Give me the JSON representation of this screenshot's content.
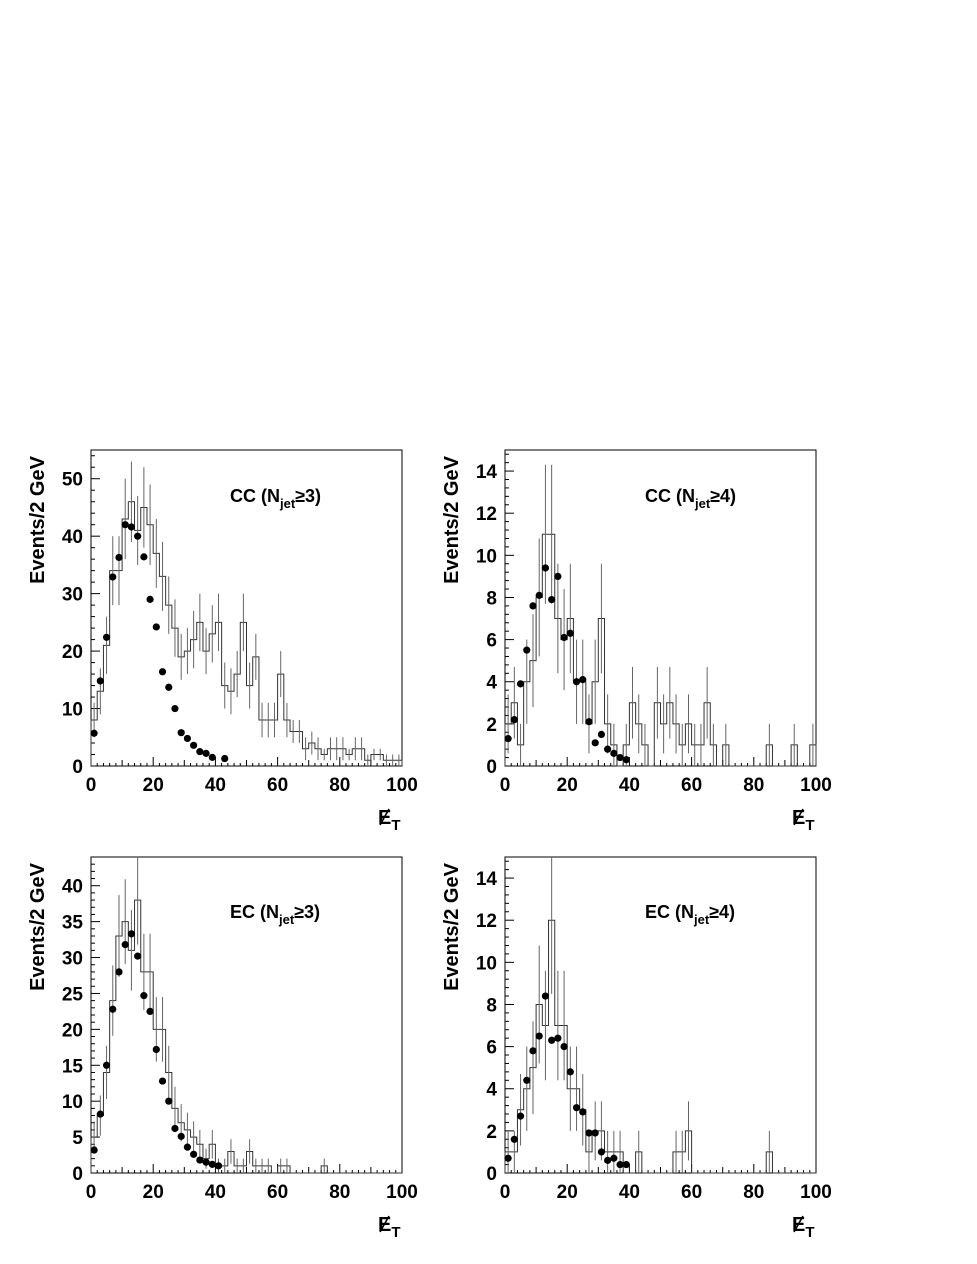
{
  "chart_data": [
    {
      "type": "histogram",
      "panel_label": {
        "main": "CC (N",
        "sub": "jet",
        "tail": "≥3)"
      },
      "ylabel": "Events/2 GeV",
      "xlabel": {
        "main": "E",
        "sub": "T"
      },
      "xlim": [
        0,
        100
      ],
      "ylim": [
        0,
        55
      ],
      "xticks": [
        "0",
        "20",
        "40",
        "60",
        "80",
        "100"
      ],
      "yticks": [
        "0",
        "10",
        "20",
        "30",
        "40",
        "50"
      ],
      "xticks_values": [
        0,
        20,
        40,
        60,
        80,
        100
      ],
      "yticks_values": [
        0,
        10,
        20,
        30,
        40,
        50
      ],
      "bin_width": 2,
      "histogram": {
        "bin_edges_start": 0,
        "values": [
          8,
          13,
          21,
          34,
          34,
          43,
          46,
          41,
          45,
          42,
          37,
          33,
          28,
          24,
          19,
          20,
          22,
          25,
          20,
          23,
          25,
          14,
          13,
          16,
          25,
          14,
          19,
          8,
          8,
          8,
          16,
          8,
          6,
          6,
          3,
          4,
          3,
          2,
          3,
          3,
          3,
          2,
          3,
          3,
          1,
          2,
          2,
          1,
          1,
          1
        ],
        "errors": [
          3,
          4,
          5,
          6,
          6,
          7,
          7,
          6,
          7,
          7,
          6,
          6,
          5,
          5,
          4,
          4,
          5,
          5,
          4,
          5,
          5,
          4,
          4,
          4,
          5,
          4,
          4,
          3,
          3,
          3,
          4,
          3,
          2,
          2,
          2,
          2,
          2,
          1,
          2,
          2,
          2,
          1,
          2,
          2,
          1,
          1,
          1,
          1,
          1,
          1
        ]
      },
      "points": {
        "x": [
          1,
          3,
          5,
          7,
          9,
          11,
          13,
          15,
          17,
          19,
          21,
          23,
          25,
          27,
          29,
          31,
          33,
          35,
          37,
          39,
          43
        ],
        "y": [
          5.7,
          14.8,
          22.4,
          32.9,
          36.3,
          42,
          41.6,
          40,
          36.4,
          29,
          24.2,
          16.4,
          13.7,
          10,
          5.8,
          4.8,
          3.6,
          2.5,
          2.2,
          1.5,
          1.3
        ]
      }
    },
    {
      "type": "histogram",
      "panel_label": {
        "main": "CC (N",
        "sub": "jet",
        "tail": "≥4)"
      },
      "ylabel": "Events/2 GeV",
      "xlabel": {
        "main": "E",
        "sub": "T"
      },
      "xlim": [
        0,
        100
      ],
      "ylim": [
        0,
        15
      ],
      "xticks": [
        "0",
        "20",
        "40",
        "60",
        "80",
        "100"
      ],
      "yticks": [
        "0",
        "2",
        "4",
        "6",
        "8",
        "10",
        "12",
        "14"
      ],
      "xticks_values": [
        0,
        20,
        40,
        60,
        80,
        100
      ],
      "yticks_values": [
        0,
        2,
        4,
        6,
        8,
        10,
        12,
        14
      ],
      "bin_width": 2,
      "histogram": {
        "bin_edges_start": 0,
        "values": [
          2,
          3,
          1,
          4,
          5,
          8,
          11,
          11,
          7,
          6,
          7,
          4,
          4,
          2,
          4,
          7,
          2,
          1,
          0,
          1,
          3,
          2,
          1,
          0,
          3,
          2,
          3,
          2,
          1,
          2,
          1,
          1,
          3,
          1,
          0,
          1,
          0,
          0,
          0,
          0,
          0,
          0,
          1,
          0,
          0,
          0,
          1,
          0,
          0,
          1
        ],
        "errors": [
          1.4,
          1.7,
          1,
          2,
          2.2,
          2.8,
          3.3,
          3.3,
          2.6,
          2.4,
          2.6,
          2,
          2,
          1.4,
          2,
          2.6,
          1.4,
          1,
          0,
          1,
          1.7,
          1.4,
          1,
          0,
          1.7,
          1.4,
          1.7,
          1.4,
          1,
          1.4,
          1,
          1,
          1.7,
          1,
          0,
          1,
          0,
          0,
          0,
          0,
          0,
          0,
          1,
          0,
          0,
          0,
          1,
          0,
          0,
          1
        ]
      },
      "points": {
        "x": [
          1,
          3,
          5,
          7,
          9,
          11,
          13,
          15,
          17,
          19,
          21,
          23,
          25,
          27,
          29,
          31,
          33,
          35,
          37,
          39
        ],
        "y": [
          1.3,
          2.2,
          3.9,
          5.5,
          7.6,
          8.1,
          9.4,
          7.9,
          9.0,
          6.1,
          6.3,
          4.0,
          4.1,
          2.1,
          1.1,
          1.5,
          0.8,
          0.6,
          0.4,
          0.3
        ]
      }
    },
    {
      "type": "histogram",
      "panel_label": {
        "main": "EC (N",
        "sub": "jet",
        "tail": "≥3)"
      },
      "ylabel": "Events/2 GeV",
      "xlabel": {
        "main": "E",
        "sub": "T"
      },
      "xlim": [
        0,
        100
      ],
      "ylim": [
        0,
        44
      ],
      "xticks": [
        "0",
        "20",
        "40",
        "60",
        "80",
        "100"
      ],
      "yticks": [
        "0",
        "5",
        "10",
        "15",
        "20",
        "25",
        "30",
        "35",
        "40"
      ],
      "xticks_values": [
        0,
        20,
        40,
        60,
        80,
        100
      ],
      "yticks_values": [
        0,
        5,
        10,
        15,
        20,
        25,
        30,
        35,
        40
      ],
      "bin_width": 2,
      "histogram": {
        "bin_edges_start": 0,
        "values": [
          5,
          8,
          14,
          24,
          33,
          35,
          31,
          38,
          28,
          28,
          20,
          20,
          14,
          9,
          7,
          6,
          5,
          4,
          2,
          4,
          1,
          1,
          3,
          1,
          1,
          3,
          1,
          1,
          1,
          0,
          1,
          1,
          0,
          0,
          0,
          0,
          0,
          1,
          0,
          0,
          0,
          0,
          0,
          0,
          0,
          0,
          0,
          0,
          0,
          0
        ],
        "errors": [
          2.2,
          2.8,
          3.7,
          4.9,
          5.7,
          5.9,
          5.6,
          6.2,
          5.3,
          5.3,
          4.5,
          4.5,
          3.7,
          3,
          2.6,
          2.4,
          2.2,
          2,
          1.4,
          2,
          1,
          1,
          1.7,
          1,
          1,
          1.7,
          1,
          1,
          1,
          0,
          1,
          1,
          0,
          0,
          0,
          0,
          0,
          1,
          0,
          0,
          0,
          0,
          0,
          0,
          0,
          0,
          0,
          0,
          0,
          0
        ]
      },
      "points": {
        "x": [
          1,
          3,
          5,
          7,
          9,
          11,
          13,
          15,
          17,
          19,
          21,
          23,
          25,
          27,
          29,
          31,
          33,
          35,
          37,
          39,
          41
        ],
        "y": [
          3.2,
          8.2,
          15,
          22.8,
          28,
          31.8,
          33.3,
          30.2,
          24.7,
          22.5,
          17.2,
          12.8,
          10,
          6.2,
          5.1,
          3.6,
          2.6,
          1.8,
          1.5,
          1.2,
          1.0
        ]
      }
    },
    {
      "type": "histogram",
      "panel_label": {
        "main": "EC (N",
        "sub": "jet",
        "tail": "≥4)"
      },
      "ylabel": "Events/2 GeV",
      "xlabel": {
        "main": "E",
        "sub": "T"
      },
      "xlim": [
        0,
        100
      ],
      "ylim": [
        0,
        15
      ],
      "xticks": [
        "0",
        "20",
        "40",
        "60",
        "80",
        "100"
      ],
      "yticks": [
        "0",
        "2",
        "4",
        "6",
        "8",
        "10",
        "12",
        "14"
      ],
      "xticks_values": [
        0,
        20,
        40,
        60,
        80,
        100
      ],
      "yticks_values": [
        0,
        2,
        4,
        6,
        8,
        10,
        12,
        14
      ],
      "bin_width": 2,
      "histogram": {
        "bin_edges_start": 0,
        "values": [
          1,
          1,
          3,
          4,
          5,
          8,
          7,
          12,
          7,
          7,
          4,
          4,
          3,
          1,
          2,
          2,
          1,
          1,
          1,
          0,
          0,
          1,
          0,
          0,
          0,
          0,
          0,
          1,
          1,
          2,
          0,
          0,
          0,
          0,
          0,
          0,
          0,
          0,
          0,
          0,
          0,
          0,
          1,
          0,
          0,
          0,
          0,
          0,
          0,
          0
        ],
        "errors": [
          1,
          1,
          1.7,
          2,
          2.2,
          2.8,
          2.6,
          3.5,
          2.6,
          2.6,
          2,
          2,
          1.7,
          1,
          1.4,
          1.4,
          1,
          1,
          1,
          0,
          0,
          1,
          0,
          0,
          0,
          0,
          0,
          1,
          1,
          1.4,
          0,
          0,
          0,
          0,
          0,
          0,
          0,
          0,
          0,
          0,
          0,
          0,
          1,
          0,
          0,
          0,
          0,
          0,
          0,
          0
        ]
      },
      "points": {
        "x": [
          1,
          3,
          5,
          7,
          9,
          11,
          13,
          15,
          17,
          19,
          21,
          23,
          25,
          27,
          29,
          31,
          33,
          35,
          37,
          39
        ],
        "y": [
          0.7,
          1.6,
          2.7,
          4.4,
          5.8,
          6.5,
          8.4,
          6.3,
          6.4,
          6.0,
          4.8,
          3.1,
          2.9,
          1.9,
          1.9,
          1.0,
          0.6,
          0.7,
          0.4,
          0.4
        ]
      }
    }
  ]
}
